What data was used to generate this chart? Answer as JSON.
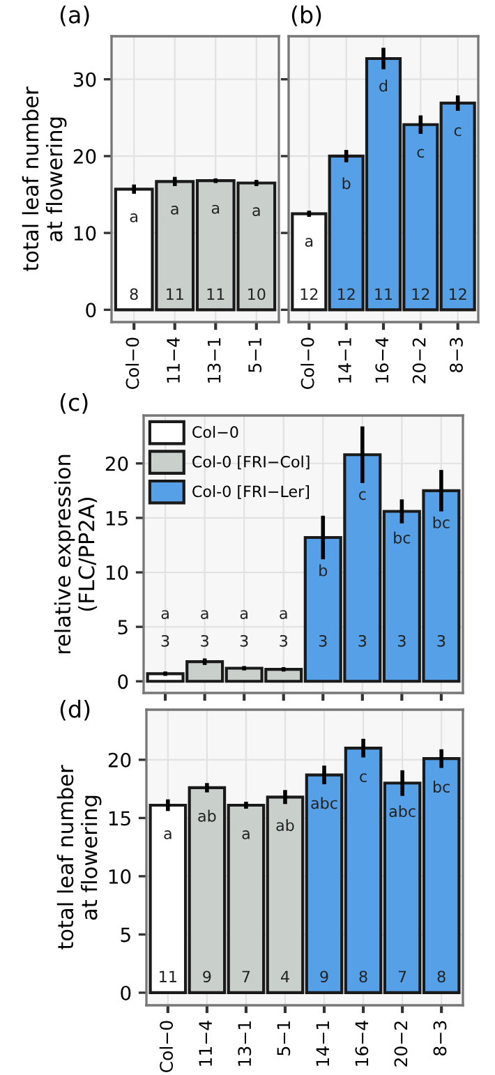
{
  "chart_data": [
    {
      "type": "bar",
      "title": "(a)",
      "ylabel": "total leaf number\nat flowering",
      "categories": [
        "Col−0",
        "11−4",
        "13−1",
        "5−1"
      ],
      "ylim": [
        -1.6,
        35.6
      ],
      "yticks": [
        0,
        10,
        20,
        30
      ],
      "grid": true,
      "series": [
        {
          "color": "#ffffff",
          "values": [
            15.7,
            null,
            null,
            null
          ],
          "errors": [
            0.6,
            null,
            null,
            null
          ]
        },
        {
          "color": "#c9cfcb",
          "values": [
            null,
            16.7,
            16.8,
            16.5
          ],
          "errors": [
            null,
            0.6,
            0.3,
            0.4
          ]
        }
      ],
      "annotations": [
        "a",
        "a",
        "a",
        "a",
        "8",
        "11",
        "11",
        "10"
      ]
    },
    {
      "type": "bar",
      "title": "(b)",
      "categories": [
        "Col−0",
        "14−1",
        "16−4",
        "20−2",
        "8−3"
      ],
      "ylim": [
        -1.6,
        35.6
      ],
      "yticks": [
        0,
        10,
        20,
        30
      ],
      "grid": true,
      "tick_labels": "x",
      "series": [
        {
          "color": "#ffffff",
          "values": [
            12.5,
            null,
            null,
            null,
            null
          ],
          "errors": [
            0.4,
            null,
            null,
            null,
            null
          ]
        },
        {
          "color": "#56a0e8",
          "values": [
            null,
            20.0,
            32.7,
            24.1,
            26.9
          ],
          "errors": [
            null,
            0.8,
            1.4,
            1.2,
            1.0
          ]
        }
      ],
      "annotations": [
        "a",
        "b",
        "d",
        "c",
        "c",
        "12",
        "12",
        "11",
        "12",
        "12"
      ]
    },
    {
      "type": "bar",
      "title": "(c)",
      "ylabel": "relative expression\n(FLC/PP2A)",
      "categories": [
        null,
        null,
        null,
        null,
        null,
        null,
        null,
        null
      ],
      "ylim": [
        -1.07,
        24.4
      ],
      "yticks": [
        0,
        5,
        10,
        15,
        20
      ],
      "grid": true,
      "tick_labels": "y",
      "legend": "top left",
      "series": [
        {
          "name": "Col−0",
          "color": "#ffffff",
          "values": [
            0.7,
            null,
            null,
            null,
            null,
            null,
            null,
            null
          ],
          "errors": [
            0.2,
            null,
            null,
            null,
            null,
            null,
            null,
            null
          ]
        },
        {
          "name": "Col-0 [FRI−Col]",
          "color": "#c9cfcb",
          "values": [
            null,
            1.8,
            1.2,
            1.1,
            null,
            null,
            null,
            null
          ],
          "errors": [
            null,
            0.3,
            0.2,
            0.2,
            null,
            null,
            null,
            null
          ]
        },
        {
          "name": "Col-0 [FRI−Ler]",
          "color": "#56a0e8",
          "values": [
            null,
            null,
            null,
            null,
            13.2,
            20.8,
            15.6,
            17.5
          ],
          "errors": [
            null,
            null,
            null,
            null,
            2.0,
            2.6,
            1.1,
            1.9
          ]
        }
      ],
      "annotations": [
        "a",
        "a",
        "a",
        "a",
        "b",
        "c",
        "bc",
        "bc",
        "3",
        "3",
        "3",
        "3",
        "3",
        "3",
        "3",
        "3"
      ]
    },
    {
      "type": "bar",
      "title": "(d)",
      "ylabel": "total leaf number\nat flowering",
      "categories": [
        "Col−0",
        "11−4",
        "13−1",
        "5−1",
        "14−1",
        "16−4",
        "20−2",
        "8−3"
      ],
      "ylim": [
        -1.08,
        24.3
      ],
      "yticks": [
        0,
        5,
        10,
        15,
        20
      ],
      "grid": true,
      "series": [
        {
          "color": "#ffffff",
          "values": [
            16.1,
            null,
            null,
            null,
            null,
            null,
            null,
            null
          ],
          "errors": [
            0.5,
            null,
            null,
            null,
            null,
            null,
            null,
            null
          ]
        },
        {
          "color": "#c9cfcb",
          "values": [
            null,
            17.6,
            16.1,
            16.8,
            null,
            null,
            null,
            null
          ],
          "errors": [
            null,
            0.4,
            0.3,
            0.6,
            null,
            null,
            null,
            null
          ]
        },
        {
          "color": "#56a0e8",
          "values": [
            null,
            null,
            null,
            null,
            18.7,
            21.0,
            18.0,
            20.1
          ],
          "errors": [
            null,
            null,
            null,
            null,
            0.8,
            0.8,
            1.1,
            0.8
          ]
        }
      ],
      "annotations": [
        "a",
        "ab",
        "a",
        "ab",
        "abc",
        "c",
        "abc",
        "bc",
        "11",
        "9",
        "7",
        "4",
        "9",
        "8",
        "7",
        "8"
      ]
    }
  ]
}
